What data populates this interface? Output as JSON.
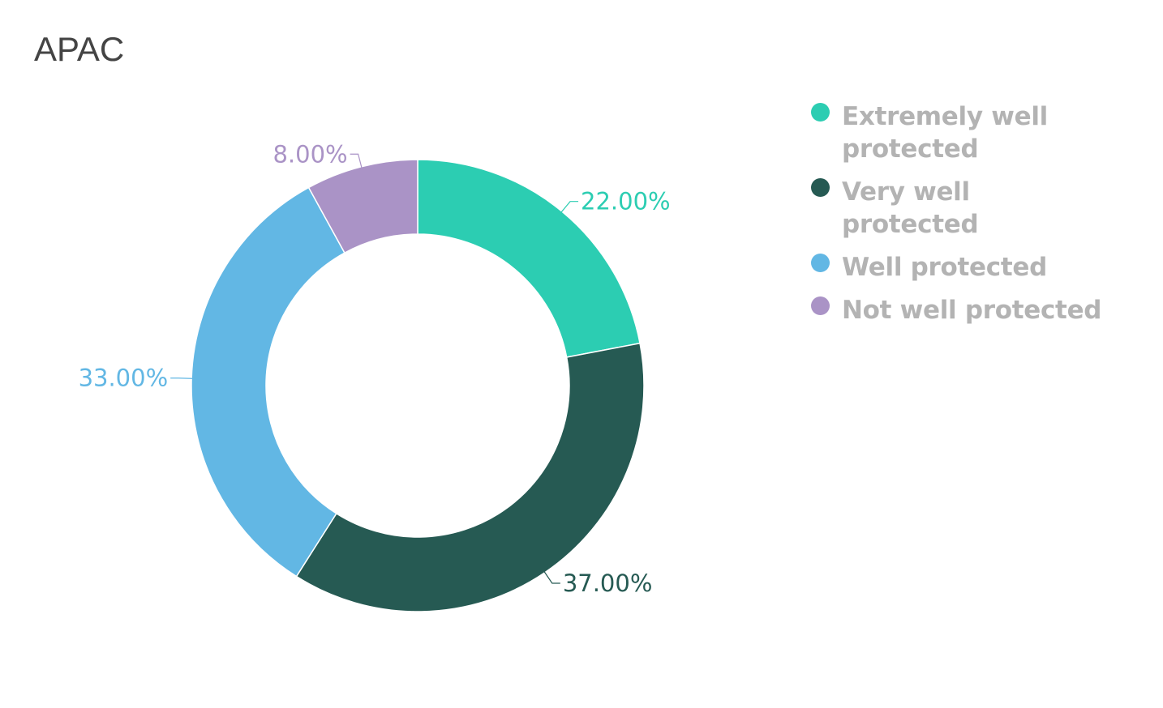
{
  "chart_data": {
    "type": "pie",
    "variant": "donut",
    "title": "APAC",
    "categories": [
      "Extremely well protected",
      "Very well protected",
      "Well protected",
      "Not well protected"
    ],
    "values": [
      22,
      37,
      33,
      8
    ],
    "value_labels": [
      "22.00%",
      "37.00%",
      "33.00%",
      "8.00%"
    ],
    "colors": [
      "#2ccdb2",
      "#265a53",
      "#62b7e4",
      "#aa93c6"
    ],
    "legend_position": "top-right",
    "start_angle": "12 o'clock",
    "direction": "clockwise"
  },
  "legend": {
    "items": [
      {
        "label": "Extremely well protected",
        "color": "#2ccdb2"
      },
      {
        "label": "Very well protected",
        "color": "#265a53"
      },
      {
        "label": "Well protected",
        "color": "#62b7e4"
      },
      {
        "label": "Not well protected",
        "color": "#aa93c6"
      }
    ]
  }
}
